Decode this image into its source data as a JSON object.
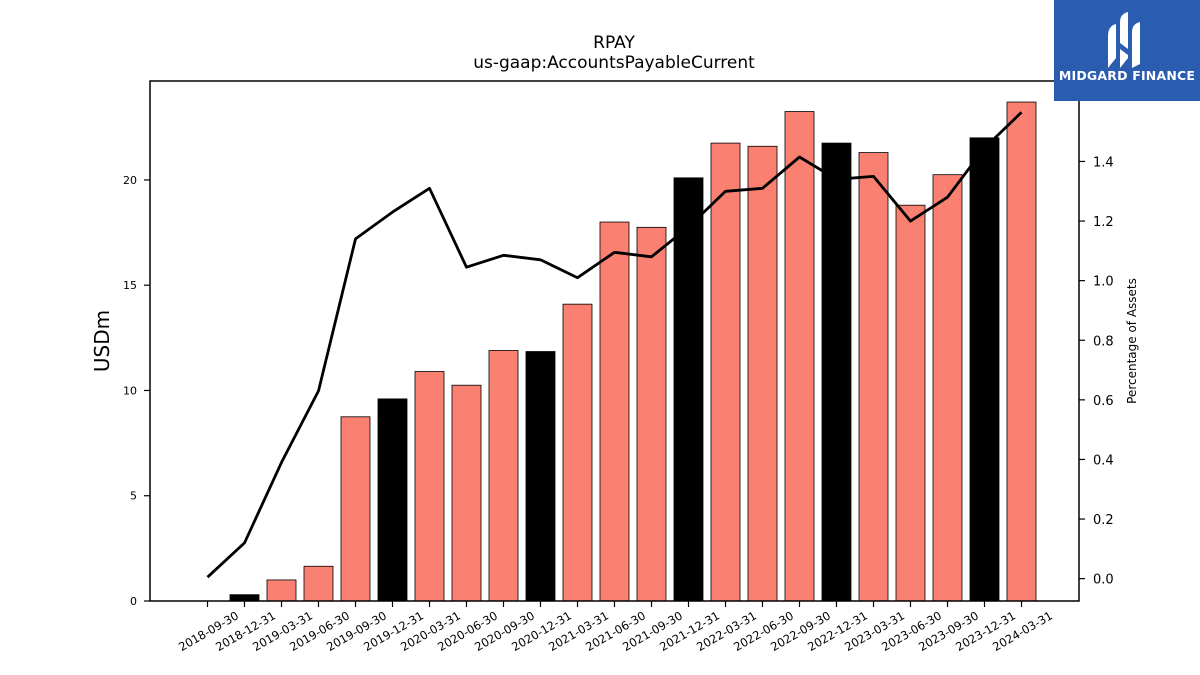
{
  "brand": {
    "logo_text": "MIDGARD FINANCE",
    "logo_icon": "midgard-finance-logo-icon",
    "logo_bg": "#2a5db0"
  },
  "chart_data": {
    "type": "bar",
    "title": "RPAY",
    "subtitle": "us-gaap:AccountsPayableCurrent",
    "ylabel": "USDm",
    "y2label": "Percentage of Assets",
    "ylim": [
      0,
      24.7
    ],
    "y2lim": [
      -0.075,
      1.67
    ],
    "yticks": [
      0,
      5,
      10,
      15,
      20
    ],
    "y2ticks": [
      0.0,
      0.2,
      0.4,
      0.6,
      0.8,
      1.0,
      1.2,
      1.4
    ],
    "grid": false,
    "categories": [
      "2018-09-30",
      "2018-12-31",
      "2019-03-31",
      "2019-06-30",
      "2019-09-30",
      "2019-12-31",
      "2020-03-31",
      "2020-06-30",
      "2020-09-30",
      "2020-12-31",
      "2021-03-31",
      "2021-06-30",
      "2021-09-30",
      "2021-12-31",
      "2022-03-31",
      "2022-06-30",
      "2022-09-30",
      "2022-12-31",
      "2023-03-31",
      "2023-06-30",
      "2023-09-30",
      "2023-12-31",
      "2024-03-31"
    ],
    "series": [
      {
        "name": "",
        "kind": "bar",
        "axis": "left",
        "values": [
          0.0,
          0.3,
          1.0,
          1.65,
          8.75,
          9.6,
          10.9,
          10.25,
          11.9,
          11.85,
          14.1,
          18.0,
          17.75,
          20.1,
          21.75,
          21.6,
          23.25,
          21.75,
          21.3,
          18.8,
          20.25,
          22.0,
          23.7
        ],
        "colors": [
          "#fa8072",
          "#000000",
          "#fa8072",
          "#fa8072",
          "#fa8072",
          "#000000",
          "#fa8072",
          "#fa8072",
          "#fa8072",
          "#000000",
          "#fa8072",
          "#fa8072",
          "#fa8072",
          "#000000",
          "#fa8072",
          "#fa8072",
          "#fa8072",
          "#000000",
          "#fa8072",
          "#fa8072",
          "#fa8072",
          "#000000",
          "#fa8072"
        ]
      },
      {
        "name": "",
        "kind": "line",
        "axis": "right",
        "color": "#000000",
        "values": [
          0.005,
          0.12,
          0.39,
          0.63,
          1.14,
          1.23,
          1.31,
          1.045,
          1.085,
          1.07,
          1.01,
          1.095,
          1.08,
          1.18,
          1.3,
          1.31,
          1.415,
          1.34,
          1.35,
          1.2,
          1.28,
          1.445,
          1.565
        ]
      }
    ]
  }
}
